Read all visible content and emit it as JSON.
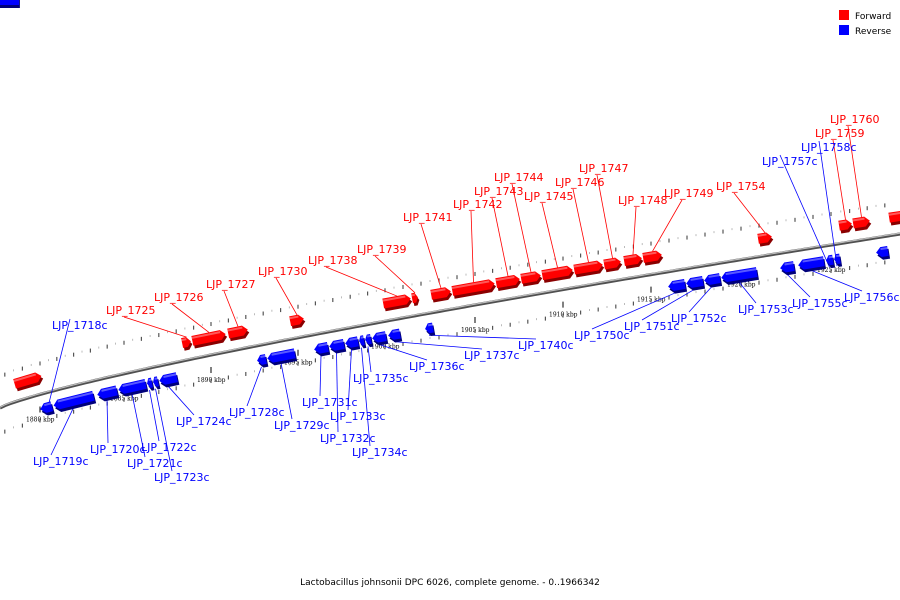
{
  "legend": [
    {
      "label": "Forward",
      "color": "#ff0000"
    },
    {
      "label": "Reverse",
      "color": "#0000ff"
    }
  ],
  "caption": "Lactobacillus johnsonii DPC 6026, complete genome. - 0..1966342",
  "colors": {
    "forward": "#ff0000",
    "reverse": "#0000ff",
    "backbone": "#808080"
  },
  "ticks": [
    {
      "kbp": 1880,
      "label": "1880 kbp"
    },
    {
      "kbp": 1885,
      "label": "1885 kbp"
    },
    {
      "kbp": 1890,
      "label": "1890 kbp"
    },
    {
      "kbp": 1895,
      "label": "1895 kbp"
    },
    {
      "kbp": 1900,
      "label": "1900 kbp"
    },
    {
      "kbp": 1905,
      "label": "1905 kbp"
    },
    {
      "kbp": 1910,
      "label": "1910 kbp"
    },
    {
      "kbp": 1915,
      "label": "1915 kbp"
    },
    {
      "kbp": 1920,
      "label": "1920 kbp"
    },
    {
      "kbp": 1925,
      "label": "1925 kbp"
    }
  ],
  "genes": [
    {
      "name": "LJP_1718c",
      "strand": "reverse"
    },
    {
      "name": "LJP_1719c",
      "strand": "reverse"
    },
    {
      "name": "LJP_1720c",
      "strand": "reverse"
    },
    {
      "name": "LJP_1721c",
      "strand": "reverse"
    },
    {
      "name": "LJP_1722c",
      "strand": "reverse"
    },
    {
      "name": "LJP_1723c",
      "strand": "reverse"
    },
    {
      "name": "LJP_1724c",
      "strand": "reverse"
    },
    {
      "name": "LJP_1725",
      "strand": "forward"
    },
    {
      "name": "LJP_1726",
      "strand": "forward"
    },
    {
      "name": "LJP_1727",
      "strand": "forward"
    },
    {
      "name": "LJP_1728c",
      "strand": "reverse"
    },
    {
      "name": "LJP_1729c",
      "strand": "reverse"
    },
    {
      "name": "LJP_1730",
      "strand": "forward"
    },
    {
      "name": "LJP_1731c",
      "strand": "reverse"
    },
    {
      "name": "LJP_1732c",
      "strand": "reverse"
    },
    {
      "name": "LJP_1733c",
      "strand": "reverse"
    },
    {
      "name": "LJP_1734c",
      "strand": "reverse"
    },
    {
      "name": "LJP_1735c",
      "strand": "reverse"
    },
    {
      "name": "LJP_1736c",
      "strand": "reverse"
    },
    {
      "name": "LJP_1737c",
      "strand": "reverse"
    },
    {
      "name": "LJP_1738",
      "strand": "forward"
    },
    {
      "name": "LJP_1739",
      "strand": "forward"
    },
    {
      "name": "LJP_1740c",
      "strand": "reverse"
    },
    {
      "name": "LJP_1741",
      "strand": "forward"
    },
    {
      "name": "LJP_1742",
      "strand": "forward"
    },
    {
      "name": "LJP_1743",
      "strand": "forward"
    },
    {
      "name": "LJP_1744",
      "strand": "forward"
    },
    {
      "name": "LJP_1745",
      "strand": "forward"
    },
    {
      "name": "LJP_1746",
      "strand": "forward"
    },
    {
      "name": "LJP_1747",
      "strand": "forward"
    },
    {
      "name": "LJP_1748",
      "strand": "forward"
    },
    {
      "name": "LJP_1749",
      "strand": "forward"
    },
    {
      "name": "LJP_1750c",
      "strand": "reverse"
    },
    {
      "name": "LJP_1751c",
      "strand": "reverse"
    },
    {
      "name": "LJP_1752c",
      "strand": "reverse"
    },
    {
      "name": "LJP_1753c",
      "strand": "reverse"
    },
    {
      "name": "LJP_1754",
      "strand": "forward"
    },
    {
      "name": "LJP_1755c",
      "strand": "reverse"
    },
    {
      "name": "LJP_1756c",
      "strand": "reverse"
    },
    {
      "name": "LJP_1757c",
      "strand": "reverse"
    },
    {
      "name": "LJP_1758c",
      "strand": "reverse"
    },
    {
      "name": "LJP_1759",
      "strand": "forward"
    },
    {
      "name": "LJP_1760",
      "strand": "forward"
    }
  ]
}
